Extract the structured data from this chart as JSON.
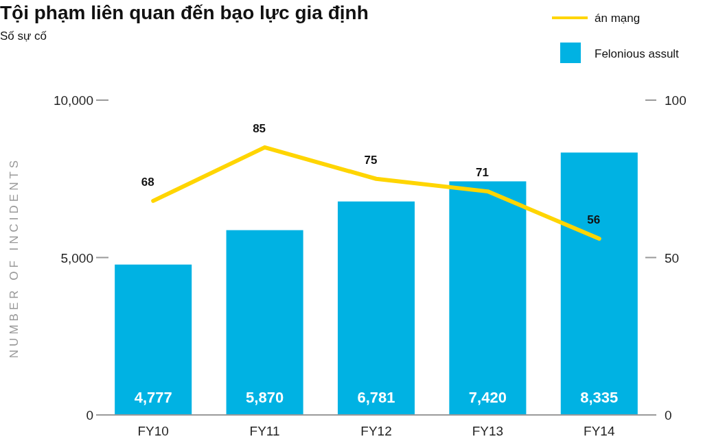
{
  "chart_data": {
    "type": "bar",
    "title": "Tội phạm liên quan đến bạo lực gia định",
    "subtitle": "Số sự cố",
    "ylabel": "NUMBER OF INCIDENTS",
    "categories": [
      "FY10",
      "FY11",
      "FY12",
      "FY13",
      "FY14"
    ],
    "series": [
      {
        "name": "Felonious assult",
        "color": "#00b2e3",
        "values": [
          4777,
          5870,
          6781,
          7420,
          8335
        ],
        "value_labels": [
          "4,777",
          "5,870",
          "6,781",
          "7,420",
          "8,335"
        ]
      },
      {
        "name": "án mạng",
        "type": "line",
        "axis": "y2",
        "color": "#ffd500",
        "values": [
          68,
          85,
          75,
          71,
          56
        ],
        "value_labels": [
          "68",
          "85",
          "75",
          "71",
          "56"
        ]
      }
    ],
    "ylim": [
      0,
      10000
    ],
    "yticks": [
      0,
      {
        "value": 5000,
        "label": "5,000"
      },
      {
        "value": 10000,
        "label": "10,000"
      }
    ],
    "y2lim": [
      0,
      100
    ],
    "y2ticks": [
      0,
      50,
      100
    ],
    "legend": "top right",
    "marker": "none",
    "line_style": "solid"
  }
}
